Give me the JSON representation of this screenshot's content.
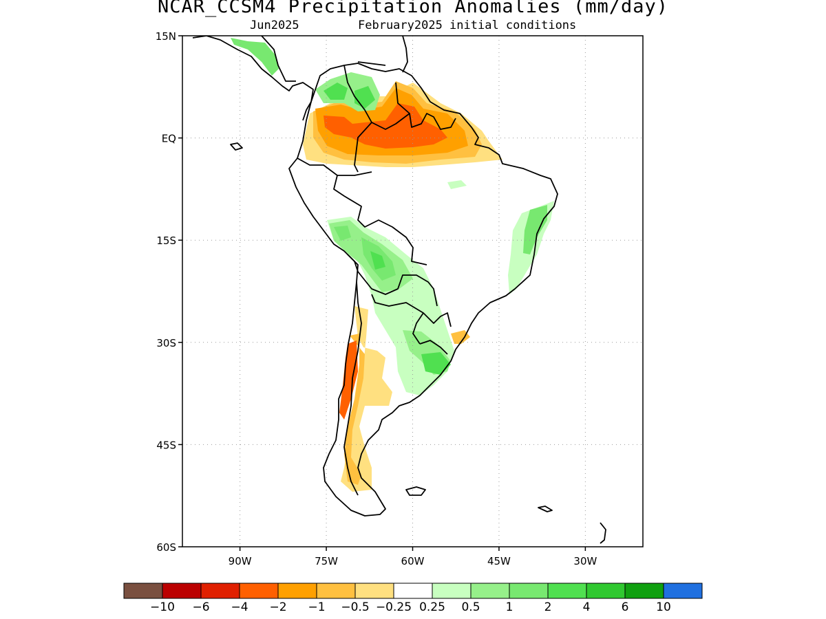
{
  "title": "NCAR_CCSM4 Precipitation Anomalies (mm/day)",
  "subtitle_left": "Jun2025",
  "subtitle_right": "February2025 initial conditions",
  "map": {
    "lon_range": [
      -100,
      -20
    ],
    "lat_range": [
      -60,
      15
    ],
    "lon_ticks": [
      {
        "lon": -90,
        "label": "90W"
      },
      {
        "lon": -75,
        "label": "75W"
      },
      {
        "lon": -60,
        "label": "60W"
      },
      {
        "lon": -45,
        "label": "45W"
      },
      {
        "lon": -30,
        "label": "30W"
      }
    ],
    "lat_ticks": [
      {
        "lat": 15,
        "label": "15N"
      },
      {
        "lat": 0,
        "label": "EQ"
      },
      {
        "lat": -15,
        "label": "15S"
      },
      {
        "lat": -30,
        "label": "30S"
      },
      {
        "lat": -45,
        "label": "45S"
      },
      {
        "lat": -60,
        "label": "60S"
      }
    ],
    "grid": "dotted"
  },
  "colorbar": {
    "colors": [
      "#7a5040",
      "#bb0000",
      "#e02000",
      "#ff6000",
      "#ffa000",
      "#ffc040",
      "#ffe080",
      "#ffffff",
      "#c8ffc0",
      "#96f08a",
      "#78e870",
      "#50e050",
      "#30c830",
      "#10a010",
      "#2070e0"
    ],
    "labels": [
      "−10",
      "−6",
      "−4",
      "−2",
      "−1",
      "−0.5",
      "−0.25",
      "0.25",
      "0.5",
      "1",
      "2",
      "4",
      "6",
      "10"
    ]
  },
  "colors": {
    "coast": "#000000",
    "grid": "#999999"
  }
}
